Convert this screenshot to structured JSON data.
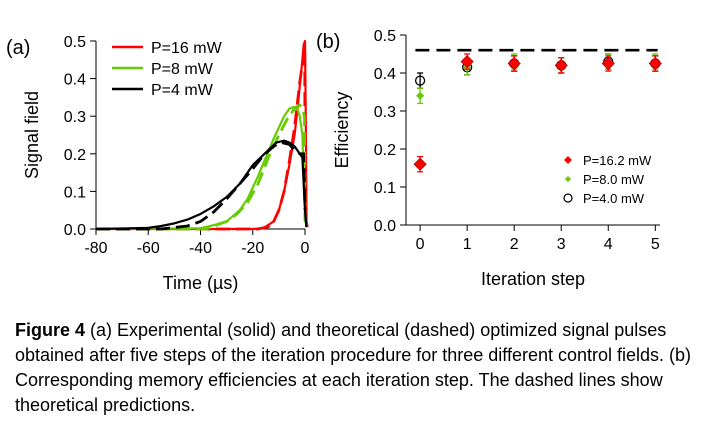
{
  "caption": {
    "label": "Figure 4",
    "text": " (a) Experimental (solid) and theoretical (dashed) optimized signal pulses obtained after five steps of the iteration procedure for three different control fields. (b) Corresponding memory efficiencies at each iteration step. The dashed lines show theoretical predictions."
  },
  "chart_data": [
    {
      "type": "line",
      "panel_label": "(a)",
      "xlabel": "Time (µs)",
      "ylabel": "Signal field",
      "xlim": [
        -80,
        0
      ],
      "ylim": [
        0,
        0.5
      ],
      "xticks": [
        -80,
        -60,
        -40,
        -20,
        0
      ],
      "yticks": [
        0.0,
        0.1,
        0.2,
        0.3,
        0.4,
        0.5
      ],
      "xtick_labels": [
        "-80",
        "-60",
        "-40",
        "-20",
        "0"
      ],
      "ytick_labels": [
        "0.0",
        "0.1",
        "0.2",
        "0.3",
        "0.4",
        "0.5"
      ],
      "legend_position": "top-left",
      "series": [
        {
          "name": "P=16 mW",
          "color": "#ff0000",
          "experiment": [
            [
              -80,
              0
            ],
            [
              -20,
              0
            ],
            [
              -16,
              0.002
            ],
            [
              -12,
              0.02
            ],
            [
              -10,
              0.05
            ],
            [
              -8,
              0.1
            ],
            [
              -6,
              0.17
            ],
            [
              -4,
              0.25
            ],
            [
              -3,
              0.31
            ],
            [
              -2,
              0.38
            ],
            [
              -1,
              0.45
            ],
            [
              -0.5,
              0.49
            ],
            [
              0,
              0.5
            ],
            [
              0.3,
              0.3
            ],
            [
              0.6,
              0.02
            ],
            [
              1,
              0.005
            ]
          ],
          "theory": [
            [
              -80,
              0
            ],
            [
              -18,
              0
            ],
            [
              -14,
              0.006
            ],
            [
              -12,
              0.02
            ],
            [
              -10,
              0.05
            ],
            [
              -8,
              0.1
            ],
            [
              -6,
              0.18
            ],
            [
              -4,
              0.27
            ],
            [
              -3,
              0.33
            ],
            [
              -2,
              0.39
            ],
            [
              -1,
              0.44
            ],
            [
              -0.5,
              0.47
            ],
            [
              -0.1,
              0.48
            ],
            [
              0,
              0.1
            ],
            [
              0.3,
              0.02
            ]
          ]
        },
        {
          "name": "P=8 mW",
          "color": "#66cc00",
          "experiment": [
            [
              -80,
              0
            ],
            [
              -40,
              0.002
            ],
            [
              -35,
              0.01
            ],
            [
              -30,
              0.02
            ],
            [
              -25,
              0.05
            ],
            [
              -22,
              0.08
            ],
            [
              -20,
              0.11
            ],
            [
              -18,
              0.14
            ],
            [
              -15,
              0.19
            ],
            [
              -12,
              0.24
            ],
            [
              -10,
              0.27
            ],
            [
              -8,
              0.3
            ],
            [
              -6,
              0.32
            ],
            [
              -4,
              0.325
            ],
            [
              -3,
              0.32
            ],
            [
              -2,
              0.3
            ],
            [
              -1,
              0.25
            ],
            [
              0,
              0.05
            ],
            [
              0.5,
              0.005
            ]
          ],
          "theory": [
            [
              -80,
              0
            ],
            [
              -38,
              0
            ],
            [
              -34,
              0.01
            ],
            [
              -30,
              0.02
            ],
            [
              -26,
              0.04
            ],
            [
              -22,
              0.07
            ],
            [
              -18,
              0.12
            ],
            [
              -14,
              0.19
            ],
            [
              -10,
              0.25
            ],
            [
              -7,
              0.29
            ],
            [
              -4,
              0.32
            ],
            [
              -2,
              0.33
            ],
            [
              -1,
              0.32
            ],
            [
              -0.2,
              0.3
            ],
            [
              0,
              0.02
            ]
          ]
        },
        {
          "name": "P=4 mW",
          "color": "#000000",
          "experiment": [
            [
              -80,
              0
            ],
            [
              -60,
              0.003
            ],
            [
              -55,
              0.008
            ],
            [
              -50,
              0.015
            ],
            [
              -45,
              0.025
            ],
            [
              -40,
              0.04
            ],
            [
              -35,
              0.06
            ],
            [
              -30,
              0.085
            ],
            [
              -25,
              0.12
            ],
            [
              -22,
              0.15
            ],
            [
              -20,
              0.17
            ],
            [
              -17,
              0.19
            ],
            [
              -14,
              0.21
            ],
            [
              -11,
              0.23
            ],
            [
              -8,
              0.235
            ],
            [
              -6,
              0.23
            ],
            [
              -4,
              0.22
            ],
            [
              -2,
              0.2
            ],
            [
              -1,
              0.19
            ],
            [
              0,
              0.05
            ],
            [
              0.5,
              0.005
            ]
          ],
          "theory": [
            [
              -80,
              0
            ],
            [
              -55,
              0
            ],
            [
              -45,
              0.008
            ],
            [
              -40,
              0.02
            ],
            [
              -35,
              0.045
            ],
            [
              -30,
              0.08
            ],
            [
              -25,
              0.12
            ],
            [
              -20,
              0.16
            ],
            [
              -16,
              0.195
            ],
            [
              -12,
              0.22
            ],
            [
              -9,
              0.23
            ],
            [
              -6,
              0.225
            ],
            [
              -4,
              0.21
            ],
            [
              -2,
              0.2
            ],
            [
              -0.5,
              0.2
            ],
            [
              0,
              0.05
            ]
          ]
        }
      ]
    },
    {
      "type": "scatter",
      "panel_label": "(b)",
      "xlabel": "Iteration step",
      "ylabel": "Efficiency",
      "xlim": [
        -0.3,
        5.1
      ],
      "ylim": [
        0,
        0.5
      ],
      "xticks": [
        0,
        1,
        2,
        3,
        4,
        5
      ],
      "yticks": [
        0.0,
        0.1,
        0.2,
        0.3,
        0.4,
        0.5
      ],
      "xtick_labels": [
        "0",
        "1",
        "2",
        "3",
        "4",
        "5"
      ],
      "ytick_labels": [
        "0.0",
        "0.1",
        "0.2",
        "0.3",
        "0.4",
        "0.5"
      ],
      "theory_line": 0.46,
      "legend_position": "bottom-right",
      "series": [
        {
          "name": "P=16.2 mW",
          "color": "#ff0000",
          "marker": "diamond",
          "x": [
            0,
            1,
            2,
            3,
            4,
            5
          ],
          "y": [
            0.16,
            0.43,
            0.425,
            0.42,
            0.425,
            0.425
          ],
          "err": [
            0.02,
            0.02,
            0.02,
            0.02,
            0.02,
            0.02
          ]
        },
        {
          "name": "P=8.0 mW",
          "color": "#66cc00",
          "marker": "small-diamond",
          "x": [
            0,
            1,
            2,
            3,
            4,
            5
          ],
          "y": [
            0.34,
            0.415,
            0.43,
            0.42,
            0.43,
            0.43
          ],
          "err": [
            0.02,
            0.02,
            0.02,
            0.02,
            0.02,
            0.02
          ]
        },
        {
          "name": "P=4.0 mW",
          "color": "#000000",
          "marker": "open-circle",
          "x": [
            0,
            1,
            2,
            3,
            4,
            5
          ],
          "y": [
            0.38,
            0.415,
            0.425,
            0.42,
            0.43,
            0.425
          ],
          "err": [
            0.02,
            0.02,
            0.02,
            0.02,
            0.02,
            0.02
          ]
        }
      ]
    }
  ]
}
